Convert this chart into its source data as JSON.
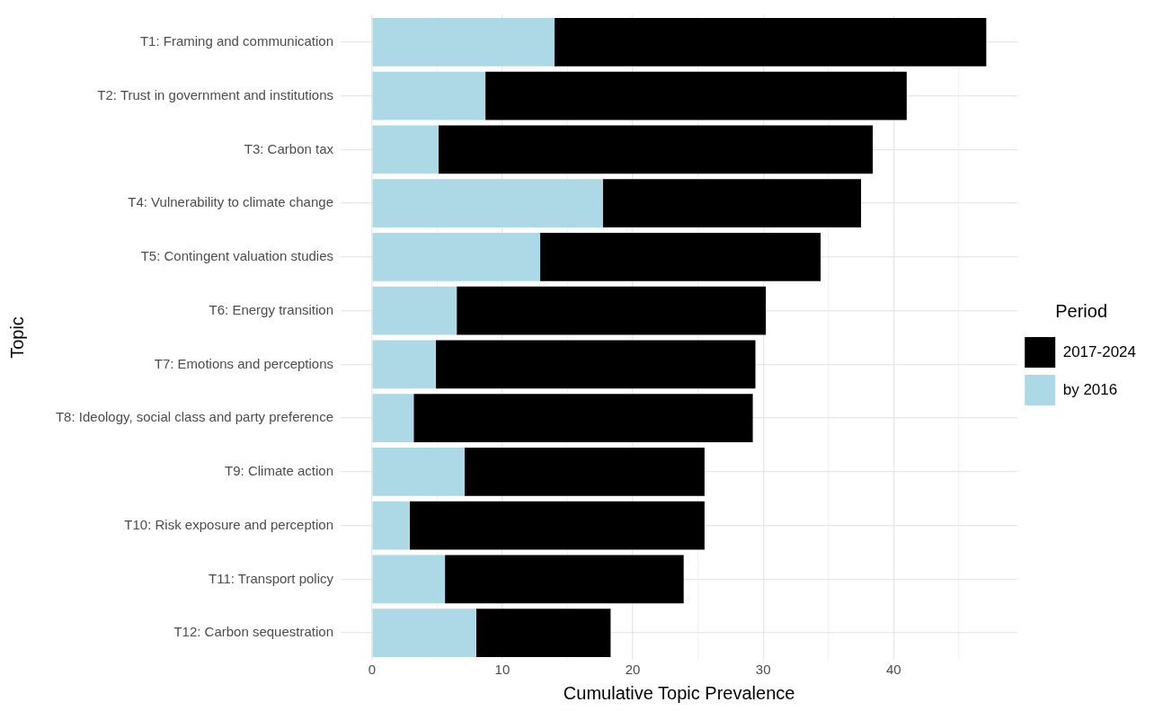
{
  "chart_data": {
    "type": "bar",
    "orientation": "horizontal",
    "stacked": true,
    "xlabel": "Cumulative Topic Prevalence",
    "ylabel": "Topic",
    "legend_title": "Period",
    "legend": "right",
    "grid": true,
    "categories": [
      "T1: Framing and communication",
      "T2: Trust in government and institutions",
      "T3: Carbon tax",
      "T4: Vulnerability to climate change",
      "T5: Contingent valuation studies",
      "T6: Energy transition",
      "T7: Emotions and perceptions",
      "T8: Ideology, social class and party preference",
      "T9: Climate action",
      "T10: Risk exposure and perception",
      "T11: Transport policy",
      "T12: Carbon sequestration"
    ],
    "series": [
      {
        "name": "by 2016",
        "color": "#add8e6",
        "values": [
          14.0,
          8.7,
          5.1,
          17.7,
          12.9,
          6.5,
          4.9,
          3.2,
          7.1,
          2.9,
          5.6,
          8.0
        ]
      },
      {
        "name": "2017-2024",
        "color": "#000000",
        "values": [
          33.1,
          32.3,
          33.3,
          19.8,
          21.5,
          23.7,
          24.5,
          26.0,
          18.4,
          22.6,
          18.3,
          10.3
        ]
      }
    ],
    "xlim": [
      -2.4,
      49.5
    ],
    "xticks": [
      0,
      {
        "value": 5,
        "label": null
      },
      10,
      {
        "value": 15,
        "label": null
      },
      20,
      {
        "value": 25,
        "label": null
      },
      30,
      {
        "value": 35,
        "label": null
      },
      40,
      {
        "value": 45,
        "label": null
      }
    ]
  }
}
